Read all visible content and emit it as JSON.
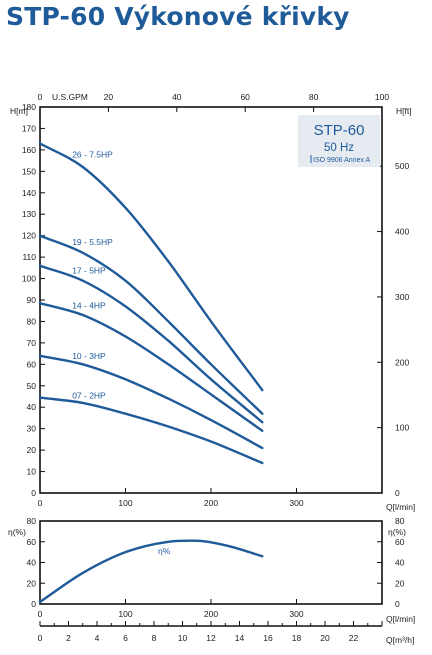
{
  "page": {
    "title": "STP-60 Výkonové křivky"
  },
  "legend": {
    "model": "STP-60",
    "frequency": "50 Hz",
    "standard": "ISO 9906 Annex A"
  },
  "chart_data": [
    {
      "type": "line",
      "title": "STP-60 Výkonové křivky",
      "xlabel": "Q[l/min]",
      "ylabel": "H[m]",
      "ylabel_right": "H[ft]",
      "xlabel_top": "U.S.GPM",
      "xlim": [
        0,
        400
      ],
      "ylim": [
        0,
        180
      ],
      "x_ticks": [
        0,
        100,
        200,
        300
      ],
      "y_ticks": [
        0,
        10,
        20,
        30,
        40,
        50,
        60,
        70,
        80,
        90,
        100,
        110,
        120,
        130,
        140,
        150,
        160,
        170,
        180
      ],
      "top_axis": {
        "label": "U.S.GPM",
        "lim": [
          0,
          100
        ],
        "ticks": [
          0,
          20,
          40,
          60,
          80,
          100
        ]
      },
      "right_axis": {
        "label": "H[ft]",
        "lim": [
          0,
          590.55
        ],
        "ticks": [
          0,
          100,
          200,
          300,
          400,
          500
        ]
      },
      "grid": false,
      "series": [
        {
          "name": "26 - 7.5HP",
          "x": [
            0,
            50,
            100,
            150,
            200,
            260
          ],
          "y": [
            163,
            152,
            133,
            108,
            80,
            48
          ]
        },
        {
          "name": "19 - 5.5HP",
          "x": [
            0,
            50,
            100,
            150,
            200,
            260
          ],
          "y": [
            120,
            112,
            99,
            80,
            60,
            37
          ]
        },
        {
          "name": "17 - 5HP",
          "x": [
            0,
            50,
            100,
            150,
            200,
            260
          ],
          "y": [
            106,
            99,
            87,
            71,
            53,
            33
          ]
        },
        {
          "name": "14 - 4HP",
          "x": [
            0,
            50,
            100,
            150,
            200,
            260
          ],
          "y": [
            88.5,
            83,
            73,
            60,
            46,
            29
          ]
        },
        {
          "name": "10 - 3HP",
          "x": [
            0,
            50,
            100,
            150,
            200,
            260
          ],
          "y": [
            64,
            60,
            53,
            44,
            34,
            21
          ]
        },
        {
          "name": "07 - 2HP",
          "x": [
            0,
            50,
            100,
            150,
            200,
            260
          ],
          "y": [
            44.5,
            42,
            37,
            31,
            24,
            14
          ]
        }
      ]
    },
    {
      "type": "line",
      "xlabel": "Q[l/min]",
      "ylabel": "η(%)",
      "ylabel_right": "η(%)",
      "xlim": [
        0,
        400
      ],
      "ylim": [
        0,
        80
      ],
      "x_ticks": [
        0,
        100,
        200,
        300
      ],
      "y_ticks": [
        0,
        20,
        40,
        60,
        80
      ],
      "bottom_axis": {
        "label": "Q[m³/h]",
        "lim": [
          0,
          24
        ],
        "ticks": [
          0,
          2,
          4,
          6,
          8,
          10,
          12,
          14,
          16,
          18,
          20,
          22
        ]
      },
      "grid": false,
      "series": [
        {
          "name": "η%",
          "x": [
            0,
            50,
            100,
            150,
            180,
            220,
            260
          ],
          "y": [
            2,
            30,
            50,
            60,
            61,
            56,
            46
          ]
        }
      ]
    }
  ]
}
